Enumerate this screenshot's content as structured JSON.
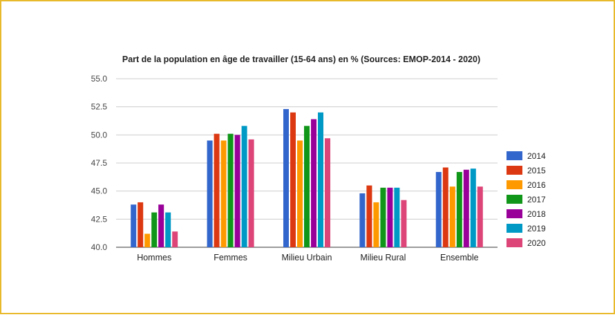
{
  "chart_data": {
    "type": "bar",
    "title": "Part de la population en âge de travailler (15-64 ans) en % (Sources: EMOP-2014 - 2020)",
    "xlabel": "",
    "ylabel": "",
    "ylim": [
      40.0,
      55.0
    ],
    "yticks": [
      "40.0",
      "42.5",
      "45.0",
      "47.5",
      "50.0",
      "52.5",
      "55.0"
    ],
    "grid": true,
    "legend_position": "right",
    "categories": [
      "Hommes",
      "Femmes",
      "Milieu Urbain",
      "Milieu Rural",
      "Ensemble"
    ],
    "series": [
      {
        "name": "2014",
        "color": "#3366cc",
        "values": [
          43.8,
          49.5,
          52.3,
          44.8,
          46.7
        ]
      },
      {
        "name": "2015",
        "color": "#dc3912",
        "values": [
          44.0,
          50.1,
          52.0,
          45.5,
          47.1
        ]
      },
      {
        "name": "2016",
        "color": "#ff9900",
        "values": [
          41.2,
          49.5,
          49.5,
          44.0,
          45.4
        ]
      },
      {
        "name": "2017",
        "color": "#109618",
        "values": [
          43.1,
          50.1,
          50.8,
          45.3,
          46.7
        ]
      },
      {
        "name": "2018",
        "color": "#990099",
        "values": [
          43.8,
          50.0,
          51.4,
          45.3,
          46.9
        ]
      },
      {
        "name": "2019",
        "color": "#0099c6",
        "values": [
          43.1,
          50.8,
          52.0,
          45.3,
          47.0
        ]
      },
      {
        "name": "2020",
        "color": "#dd4477",
        "values": [
          41.4,
          49.6,
          49.7,
          44.2,
          45.4
        ]
      }
    ]
  }
}
